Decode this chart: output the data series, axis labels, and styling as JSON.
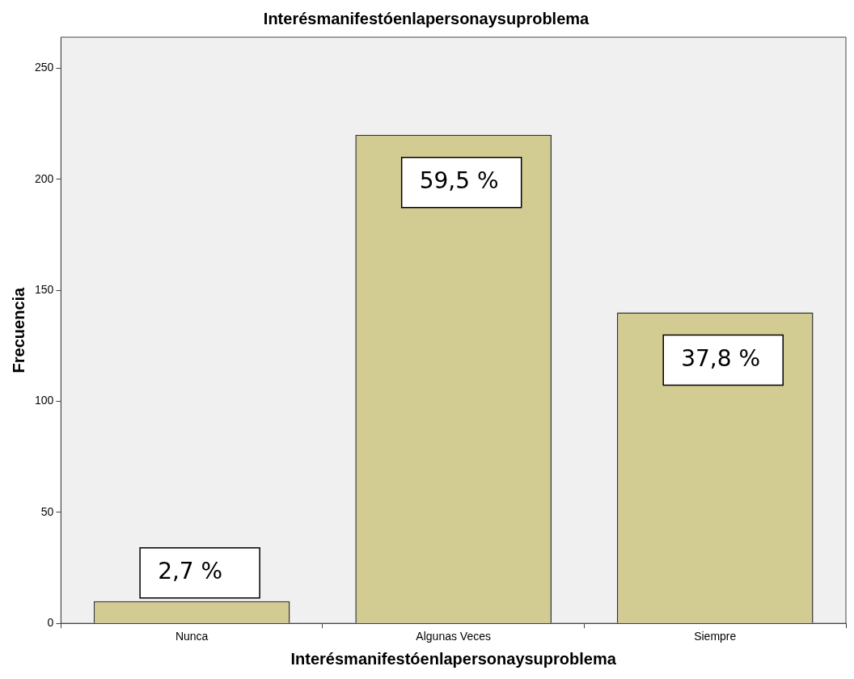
{
  "chart_data": {
    "type": "bar",
    "title": "Interésmanifestóenlapersonaysuproblema",
    "xlabel": "Interésmanifestóenlapersonaysuproblema",
    "ylabel": "Frecuencia",
    "categories": [
      "Nunca",
      "Algunas Veces",
      "Siempre"
    ],
    "values": [
      10,
      220,
      140
    ],
    "annotations": [
      {
        "text": "2,7 %",
        "x": "Nunca",
        "y": 10
      },
      {
        "text": "59,5 %",
        "x": "Algunas Veces",
        "y": 220
      },
      {
        "text": "37,8 %",
        "x": "Siempre",
        "y": 140
      }
    ],
    "color": "#d3cc92",
    "ylim": [
      0,
      264
    ],
    "yticks": [
      0,
      50,
      100,
      150,
      200,
      250
    ],
    "grid": false,
    "legend": false
  }
}
